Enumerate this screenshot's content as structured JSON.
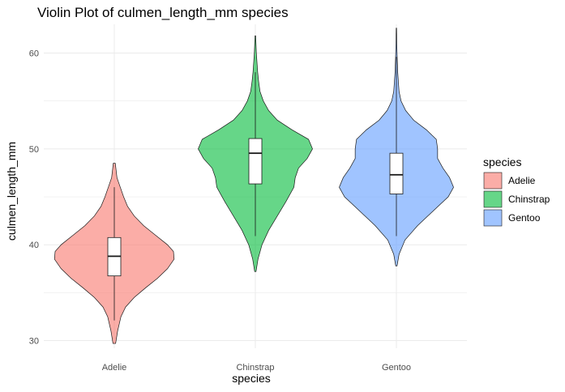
{
  "chart_data": {
    "type": "violin",
    "title": "Violin Plot of culmen_length_mm species",
    "xlabel": "species",
    "ylabel": "culmen_length_mm",
    "categories": [
      "Adelie",
      "Chinstrap",
      "Gentoo"
    ],
    "ylim": [
      29.2,
      63
    ],
    "yticks": [
      "30",
      "40",
      "50",
      "60"
    ],
    "grid": true,
    "legend": {
      "title": "species",
      "placement": "right",
      "entries": [
        "Adelie",
        "Chinstrap",
        "Gentoo"
      ]
    },
    "series": [
      {
        "name": "Adelie",
        "color": "#F8766D",
        "min": 32.1,
        "max": 46.0,
        "density_y": [
          29.7,
          31.0,
          32.5,
          33.5,
          34.5,
          35.5,
          36.5,
          37.5,
          38.5,
          39.3,
          40.0,
          41.0,
          42.0,
          43.0,
          44.0,
          45.0,
          46.0,
          47.0,
          48.5
        ],
        "density_w": [
          0.02,
          0.05,
          0.1,
          0.17,
          0.3,
          0.47,
          0.65,
          0.8,
          0.9,
          0.89,
          0.8,
          0.62,
          0.44,
          0.3,
          0.2,
          0.14,
          0.09,
          0.04,
          0.015
        ],
        "box": {
          "q1": 36.75,
          "median": 38.8,
          "q3": 40.75
        }
      },
      {
        "name": "Chinstrap",
        "color": "#00BA38",
        "min": 40.9,
        "max": 58.0,
        "density_y": [
          37.2,
          38.5,
          40.0,
          41.5,
          43.0,
          44.5,
          46.0,
          47.0,
          48.0,
          49.0,
          50.0,
          51.0,
          52.0,
          53.0,
          54.0,
          55.0,
          56.0,
          57.0,
          58.0,
          59.0,
          60.0,
          61.8
        ],
        "density_w": [
          0.01,
          0.04,
          0.1,
          0.2,
          0.33,
          0.46,
          0.58,
          0.6,
          0.65,
          0.78,
          0.86,
          0.8,
          0.55,
          0.33,
          0.2,
          0.12,
          0.07,
          0.05,
          0.035,
          0.025,
          0.015,
          0.005
        ],
        "box": {
          "q1": 46.35,
          "median": 49.55,
          "q3": 51.08
        }
      },
      {
        "name": "Gentoo",
        "color": "#619CFF",
        "min": 40.9,
        "max": 59.6,
        "density_y": [
          37.8,
          39.0,
          40.5,
          42.0,
          43.5,
          45.0,
          46.0,
          47.0,
          48.0,
          49.0,
          50.0,
          51.0,
          52.0,
          53.0,
          54.0,
          55.0,
          56.0,
          57.0,
          58.0,
          59.0,
          60.0,
          61.0,
          62.6
        ],
        "density_w": [
          0.01,
          0.04,
          0.13,
          0.32,
          0.55,
          0.78,
          0.86,
          0.8,
          0.7,
          0.62,
          0.62,
          0.6,
          0.45,
          0.26,
          0.14,
          0.07,
          0.04,
          0.03,
          0.02,
          0.015,
          0.01,
          0.006,
          0.003
        ],
        "box": {
          "q1": 45.3,
          "median": 47.3,
          "q3": 49.55
        }
      }
    ]
  }
}
